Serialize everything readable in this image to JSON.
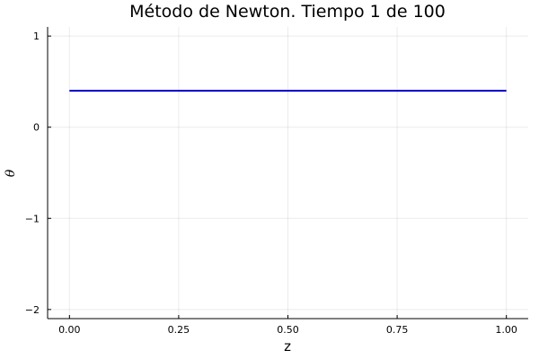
{
  "chart_data": {
    "type": "line",
    "title": "Método de Newton. Tiempo 1 de 100",
    "xlabel": "z",
    "ylabel": "θ",
    "xlim": [
      -0.05,
      1.05
    ],
    "ylim": [
      -2.1,
      1.1
    ],
    "xticks": [
      0.0,
      0.25,
      0.5,
      0.75,
      1.0
    ],
    "xtick_labels": [
      "0.00",
      "0.25",
      "0.50",
      "0.75",
      "1.00"
    ],
    "yticks": [
      1,
      0,
      -1,
      -2
    ],
    "ytick_labels": [
      "1",
      "0",
      "−1",
      "−2"
    ],
    "grid": true,
    "legend": "none",
    "series": [
      {
        "color": "#0000c8",
        "x": [
          0.0,
          0.25,
          0.5,
          0.75,
          1.0
        ],
        "y": [
          0.4,
          0.4,
          0.4,
          0.4,
          0.4
        ]
      }
    ]
  }
}
